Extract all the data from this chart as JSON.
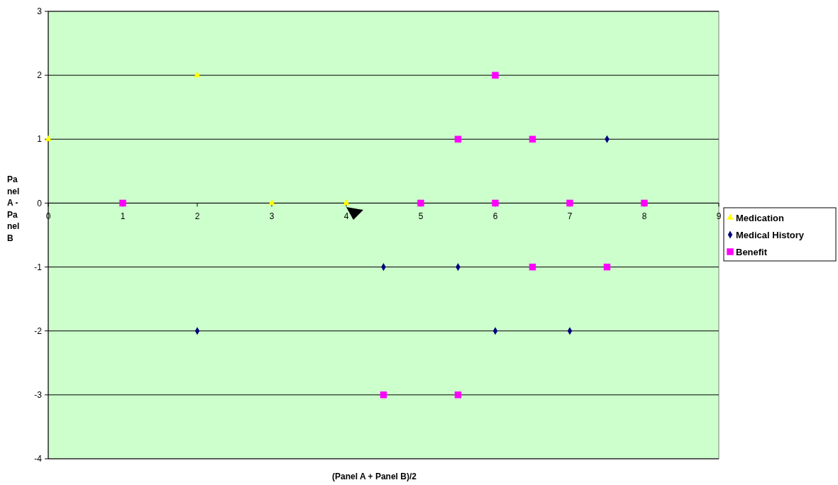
{
  "chart_data": {
    "type": "scatter",
    "xlabel": "(Panel A + Panel B)/2",
    "ylabel": "Panel A - Panel B",
    "xlim": [
      0,
      9
    ],
    "xticks": [
      0,
      1,
      2,
      3,
      4,
      5,
      6,
      7,
      8,
      9
    ],
    "ylim": [
      -4,
      3
    ],
    "yticks": [
      -4,
      -3,
      -2,
      -1,
      0,
      1,
      2,
      3
    ],
    "grid": "y",
    "legend": "right",
    "series": [
      {
        "name": "Medication",
        "color": "#ffff00",
        "marker": "triangle",
        "x": [
          0,
          2,
          3,
          4
        ],
        "values": [
          1,
          2,
          0,
          0
        ]
      },
      {
        "name": "Medical History",
        "color": "#000080",
        "marker": "diamond",
        "x": [
          7.5,
          4.5,
          5.5,
          2,
          6,
          7
        ],
        "values": [
          1,
          -1,
          -1,
          -2,
          -2,
          -2
        ]
      },
      {
        "name": "Benefit",
        "color": "#ff00ff",
        "marker": "square",
        "x": [
          6,
          5.5,
          6.5,
          1,
          5,
          6,
          7,
          8,
          6.5,
          7.5,
          4.5,
          5.5
        ],
        "values": [
          2,
          1,
          1,
          0,
          0,
          0,
          0,
          0,
          -1,
          -1,
          -3,
          -3
        ]
      }
    ]
  }
}
